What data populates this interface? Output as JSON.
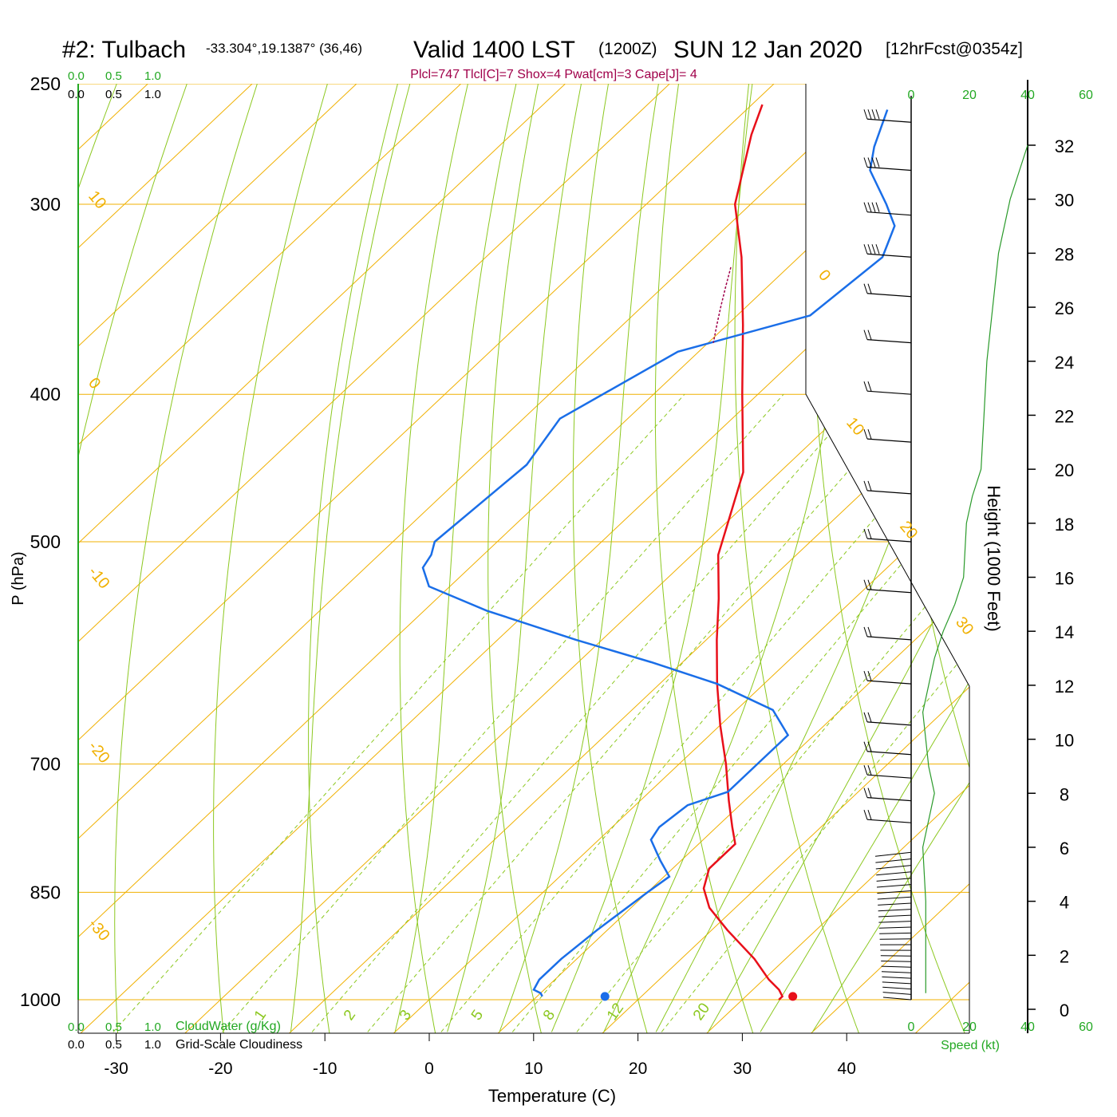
{
  "header": {
    "station": "#2: Tulbach",
    "coords": "-33.304°,19.1387° (36,46)",
    "valid": "Valid 1400 LST",
    "zulu": "(1200Z)",
    "date": "SUN 12 Jan 2020",
    "forecast": "[12hrFcst@0354z]",
    "indices": "Plcl=747 Tlcl[C]=7 Shox=4 Pwat[cm]=3 Cape[J]= 4"
  },
  "colors": {
    "temperature": "#e8101a",
    "dewpoint": "#1a6ee8",
    "isotherm": "#f0b000",
    "dry_adiabat": "#8cc820",
    "moist_adiabat": "#8cc820",
    "mixing_ratio": "#8cc820",
    "cloud_scale": "#22a822",
    "parcel": "#a0004a",
    "barbs": "#000000",
    "height_curve": "#2a9a2a"
  },
  "cloud_scale": {
    "top_green": [
      "0.0",
      "0.5",
      "1.0"
    ],
    "top_black": [
      "0.0",
      "0.5",
      "1.0"
    ],
    "bottom_green": [
      "0.0",
      "0.5",
      "1.0"
    ],
    "bottom_black": [
      "0.0",
      "0.5",
      "1.0"
    ],
    "cloudwater_label": "CloudWater (g/Kg)",
    "cloudiness_label": "Grid-Scale Cloudiness"
  },
  "wind_panel": {
    "speed_ticks": [
      "0",
      "20",
      "40",
      "60"
    ],
    "speed_label": "Speed (kt)"
  },
  "chart_data": {
    "type": "line",
    "chart_kind": "skew-T log-P sounding",
    "xlabel": "Temperature (C)",
    "ylabel": "P (hPa)",
    "y2label": "Height (1000 Feet)",
    "x_ticks": [
      -30,
      -20,
      -10,
      0,
      10,
      20,
      30,
      40
    ],
    "p_ticks": [
      250,
      300,
      400,
      500,
      700,
      850,
      1000
    ],
    "height_ticks": [
      0,
      2,
      4,
      6,
      8,
      10,
      12,
      14,
      16,
      18,
      20,
      22,
      24,
      26,
      28,
      30,
      32
    ],
    "isotherm_labels": [
      "10",
      "0",
      "-10",
      "-20",
      "-30",
      "0",
      "10",
      "20",
      "30"
    ],
    "mixing_ratio_labels": [
      "1",
      "2",
      "3",
      "5",
      "8",
      "12",
      "20"
    ],
    "temperature": {
      "p": [
        1000,
        995,
        985,
        970,
        940,
        900,
        870,
        845,
        820,
        800,
        790,
        770,
        740,
        700,
        660,
        620,
        580,
        545,
        510,
        450,
        400,
        360,
        325,
        300,
        270,
        258
      ],
      "t": [
        33.5,
        33.5,
        32.5,
        30.5,
        27.0,
        21.5,
        17.5,
        15.0,
        13.5,
        13.5,
        13.5,
        11.5,
        8.5,
        4.5,
        0.0,
        -4.5,
        -9.0,
        -13.0,
        -17.5,
        -23.5,
        -31.5,
        -38.5,
        -45.5,
        -51.5,
        -57.0,
        -59.0
      ]
    },
    "dewpoint": {
      "p": [
        995,
        990,
        985,
        970,
        940,
        900,
        850,
        830,
        810,
        785,
        770,
        745,
        730,
        700,
        670,
        645,
        620,
        600,
        580,
        555,
        535,
        520,
        510,
        500,
        445,
        415,
        375,
        355,
        325,
        310,
        300,
        285,
        275,
        260
      ],
      "t": [
        10.5,
        10.0,
        9.0,
        8.5,
        8.5,
        9.0,
        10.0,
        10.5,
        8.0,
        5.0,
        4.5,
        5.0,
        7.5,
        7.5,
        7.5,
        3.5,
        -4.5,
        -13.0,
        -22.5,
        -34.0,
        -42.0,
        -44.5,
        -45.0,
        -46.0,
        -45.0,
        -46.5,
        -42.0,
        -33.0,
        -32.0,
        -34.0,
        -37.0,
        -42.0,
        -44.0,
        -46.5
      ]
    },
    "surface_points": {
      "temperature": {
        "p": 995,
        "t": 34.5
      },
      "dewpoint": {
        "p": 995,
        "t": 16.5
      }
    },
    "height_profile": {
      "speed_kt": [
        5,
        5,
        5,
        4,
        6,
        8,
        6,
        5,
        4,
        6,
        8,
        11,
        15,
        18,
        19,
        21,
        24,
        25,
        26,
        28,
        30,
        34,
        40
      ],
      "height_kft": [
        0.6,
        2,
        4,
        6,
        7,
        8,
        9,
        10,
        11,
        12,
        13,
        14,
        15,
        16,
        18,
        19,
        20,
        22,
        24,
        26,
        28,
        30,
        32
      ]
    }
  }
}
